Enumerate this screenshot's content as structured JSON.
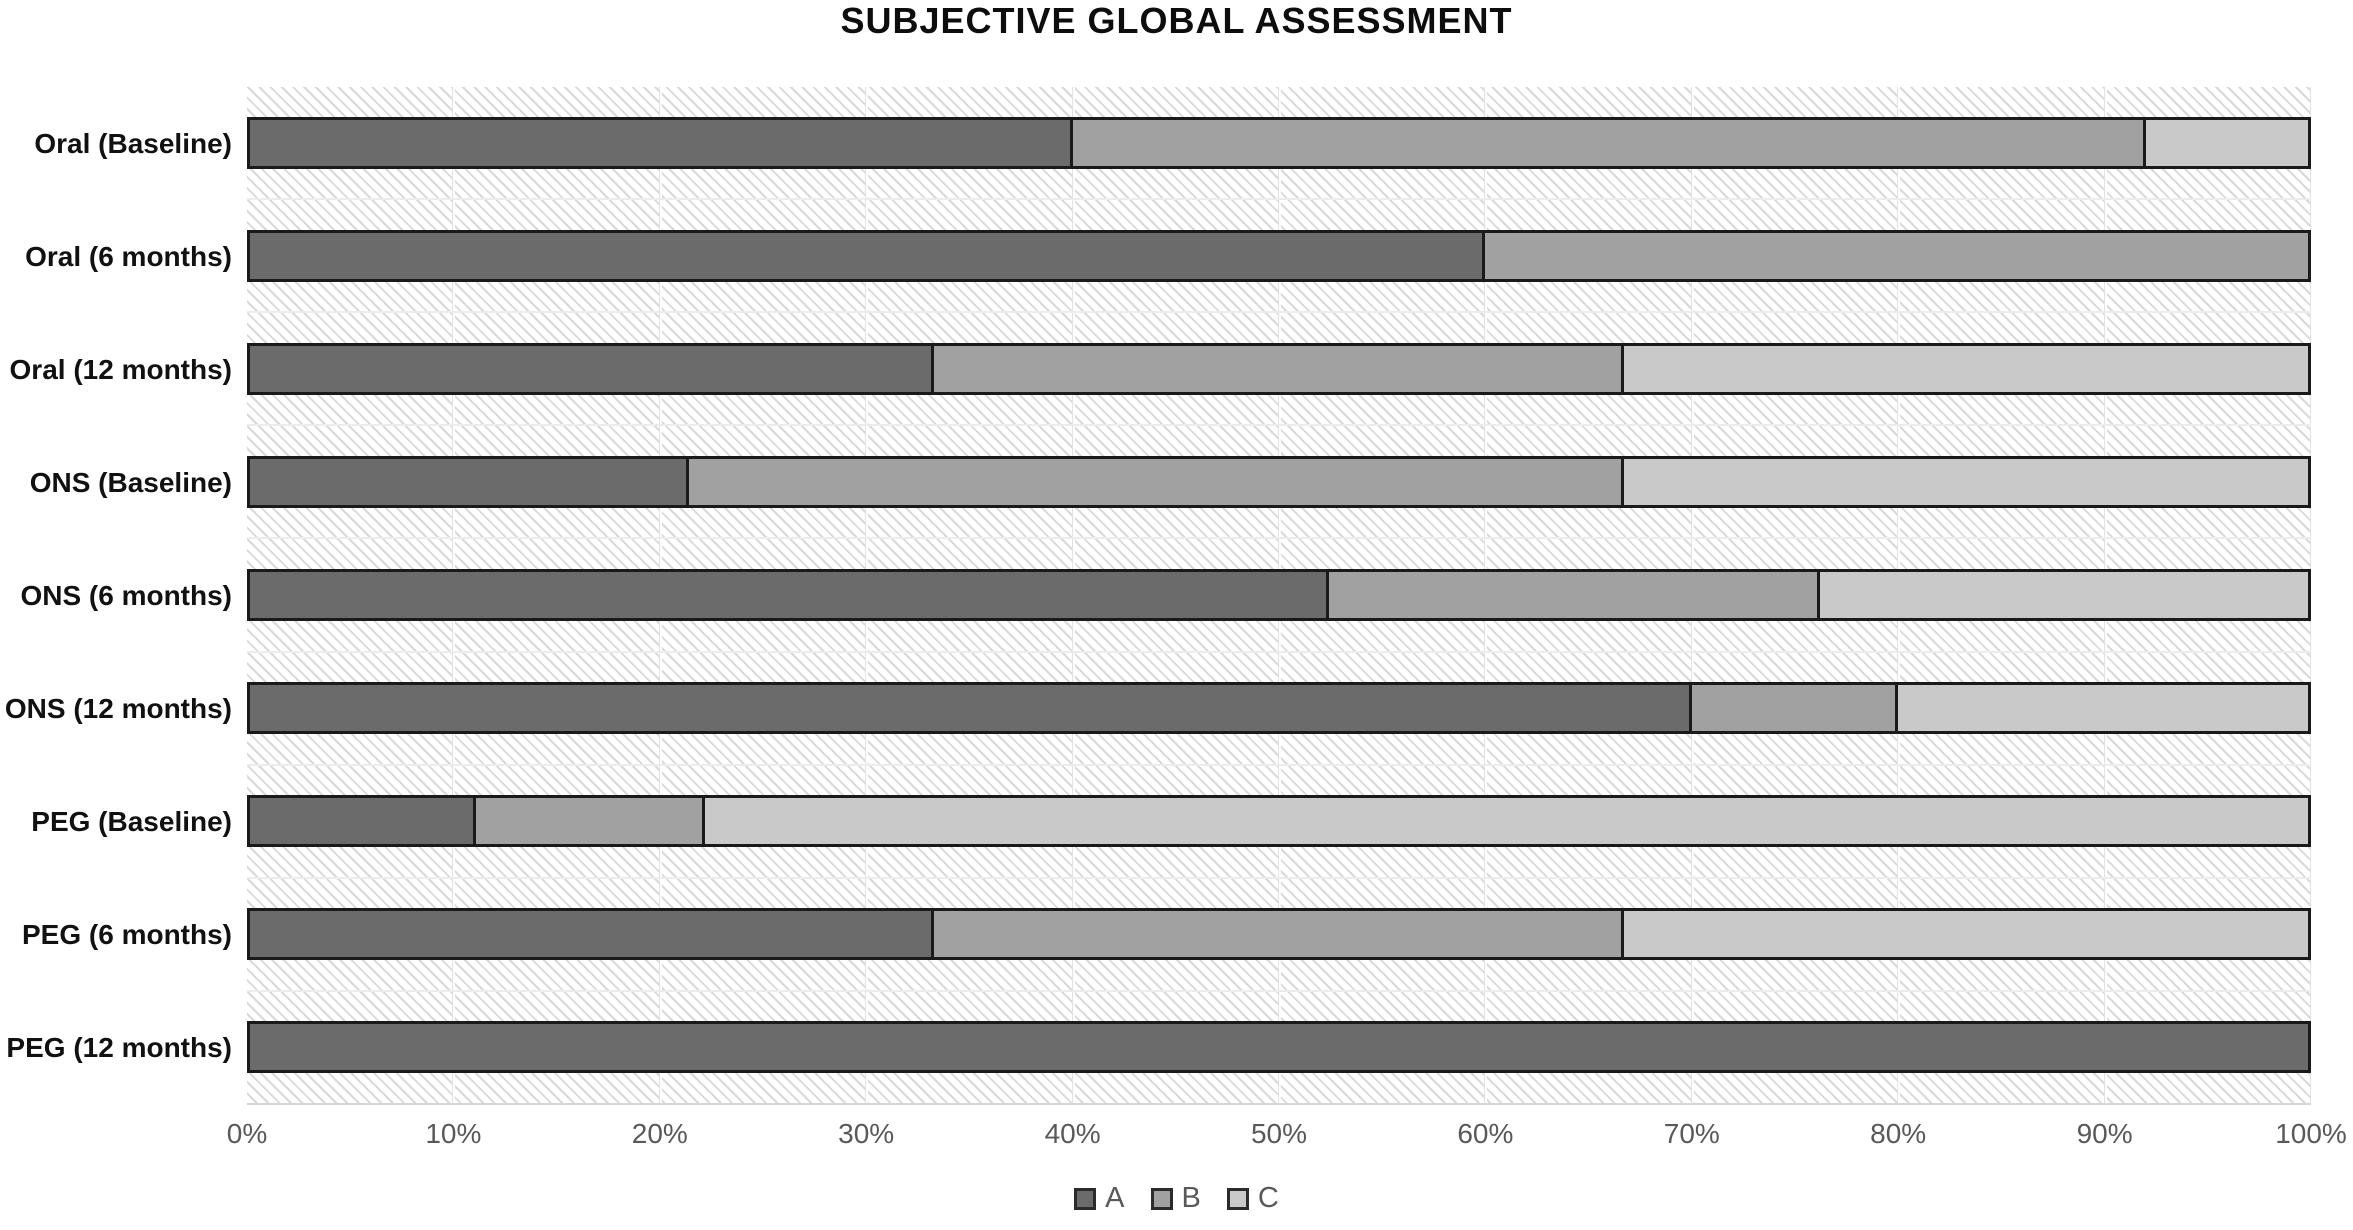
{
  "title": "SUBJECTIVE GLOBAL ASSESSMENT",
  "chart_data": {
    "type": "bar",
    "orientation": "horizontal",
    "stacked": true,
    "title": "SUBJECTIVE GLOBAL ASSESSMENT",
    "categories": [
      "Oral (Baseline)",
      "Oral (6 months)",
      "Oral (12 months)",
      "ONS (Baseline)",
      "ONS (6 months)",
      "ONS (12 months)",
      "PEG (Baseline)",
      "PEG (6 months)",
      "PEG (12 months)"
    ],
    "series": [
      {
        "name": "A",
        "color": "#6b6b6b",
        "values": [
          40.0,
          60.0,
          33.3,
          21.4,
          52.4,
          70.0,
          11.1,
          33.3,
          100.0
        ]
      },
      {
        "name": "B",
        "color": "#a1a1a1",
        "values": [
          52.0,
          40.0,
          33.4,
          45.3,
          23.8,
          10.0,
          11.1,
          33.4,
          0.0
        ]
      },
      {
        "name": "C",
        "color": "#c9c9c9",
        "values": [
          8.0,
          0.0,
          33.3,
          33.3,
          23.8,
          20.0,
          77.8,
          33.3,
          0.0
        ]
      }
    ],
    "xlim": [
      0,
      100
    ],
    "x_tick_labels": [
      "0%",
      "10%",
      "20%",
      "30%",
      "40%",
      "50%",
      "60%",
      "70%",
      "80%",
      "90%",
      "100%"
    ],
    "grid": true,
    "legend_position": "bottom",
    "legend_labels": [
      "A",
      "B",
      "C"
    ]
  }
}
